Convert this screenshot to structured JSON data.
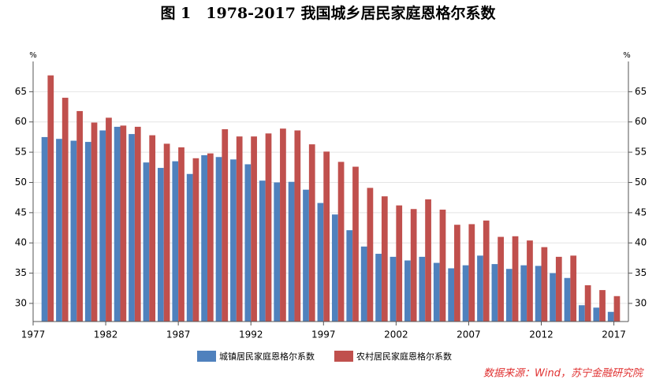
{
  "chart_data": {
    "type": "bar",
    "title": "图 1　1978-2017 我国城乡居民家庭恩格尔系数",
    "y_unit": "%",
    "source": "数据来源：Wind，苏宁金融研究院",
    "x": [
      1978,
      1979,
      1980,
      1981,
      1982,
      1983,
      1984,
      1985,
      1986,
      1987,
      1988,
      1989,
      1990,
      1991,
      1992,
      1993,
      1994,
      1995,
      1996,
      1997,
      1998,
      1999,
      2000,
      2001,
      2002,
      2003,
      2004,
      2005,
      2006,
      2007,
      2008,
      2009,
      2010,
      2011,
      2012,
      2013,
      2014,
      2015,
      2016,
      2017
    ],
    "series": [
      {
        "name": "城镇居民家庭恩格尔系数",
        "color": "#4f81bd",
        "values": [
          57.5,
          57.2,
          56.9,
          56.7,
          58.6,
          59.2,
          58.0,
          53.3,
          52.4,
          53.5,
          51.4,
          54.5,
          54.2,
          53.8,
          53.0,
          50.3,
          50.0,
          50.1,
          48.8,
          46.6,
          44.7,
          42.1,
          39.4,
          38.2,
          37.7,
          37.1,
          37.7,
          36.7,
          35.8,
          36.3,
          37.9,
          36.5,
          35.7,
          36.3,
          36.2,
          35.0,
          34.2,
          29.7,
          29.3,
          28.6
        ]
      },
      {
        "name": "农村居民家庭恩格尔系数",
        "color": "#c0504d",
        "values": [
          67.7,
          64.0,
          61.8,
          59.9,
          60.7,
          59.4,
          59.2,
          57.8,
          56.4,
          55.8,
          54.0,
          54.8,
          58.8,
          57.6,
          57.6,
          58.1,
          58.9,
          58.6,
          56.3,
          55.1,
          53.4,
          52.6,
          49.1,
          47.7,
          46.2,
          45.6,
          47.2,
          45.5,
          43.0,
          43.1,
          43.7,
          41.0,
          41.1,
          40.4,
          39.3,
          37.7,
          37.9,
          33.0,
          32.2,
          31.2
        ]
      }
    ],
    "xlim": [
      1977,
      2018
    ],
    "xticks": [
      1977,
      1982,
      1987,
      1992,
      1997,
      2002,
      2007,
      2012,
      2017
    ],
    "ylim": [
      27,
      70
    ],
    "yticks": [
      30,
      35,
      40,
      45,
      50,
      55,
      60,
      65
    ],
    "grid": true
  }
}
